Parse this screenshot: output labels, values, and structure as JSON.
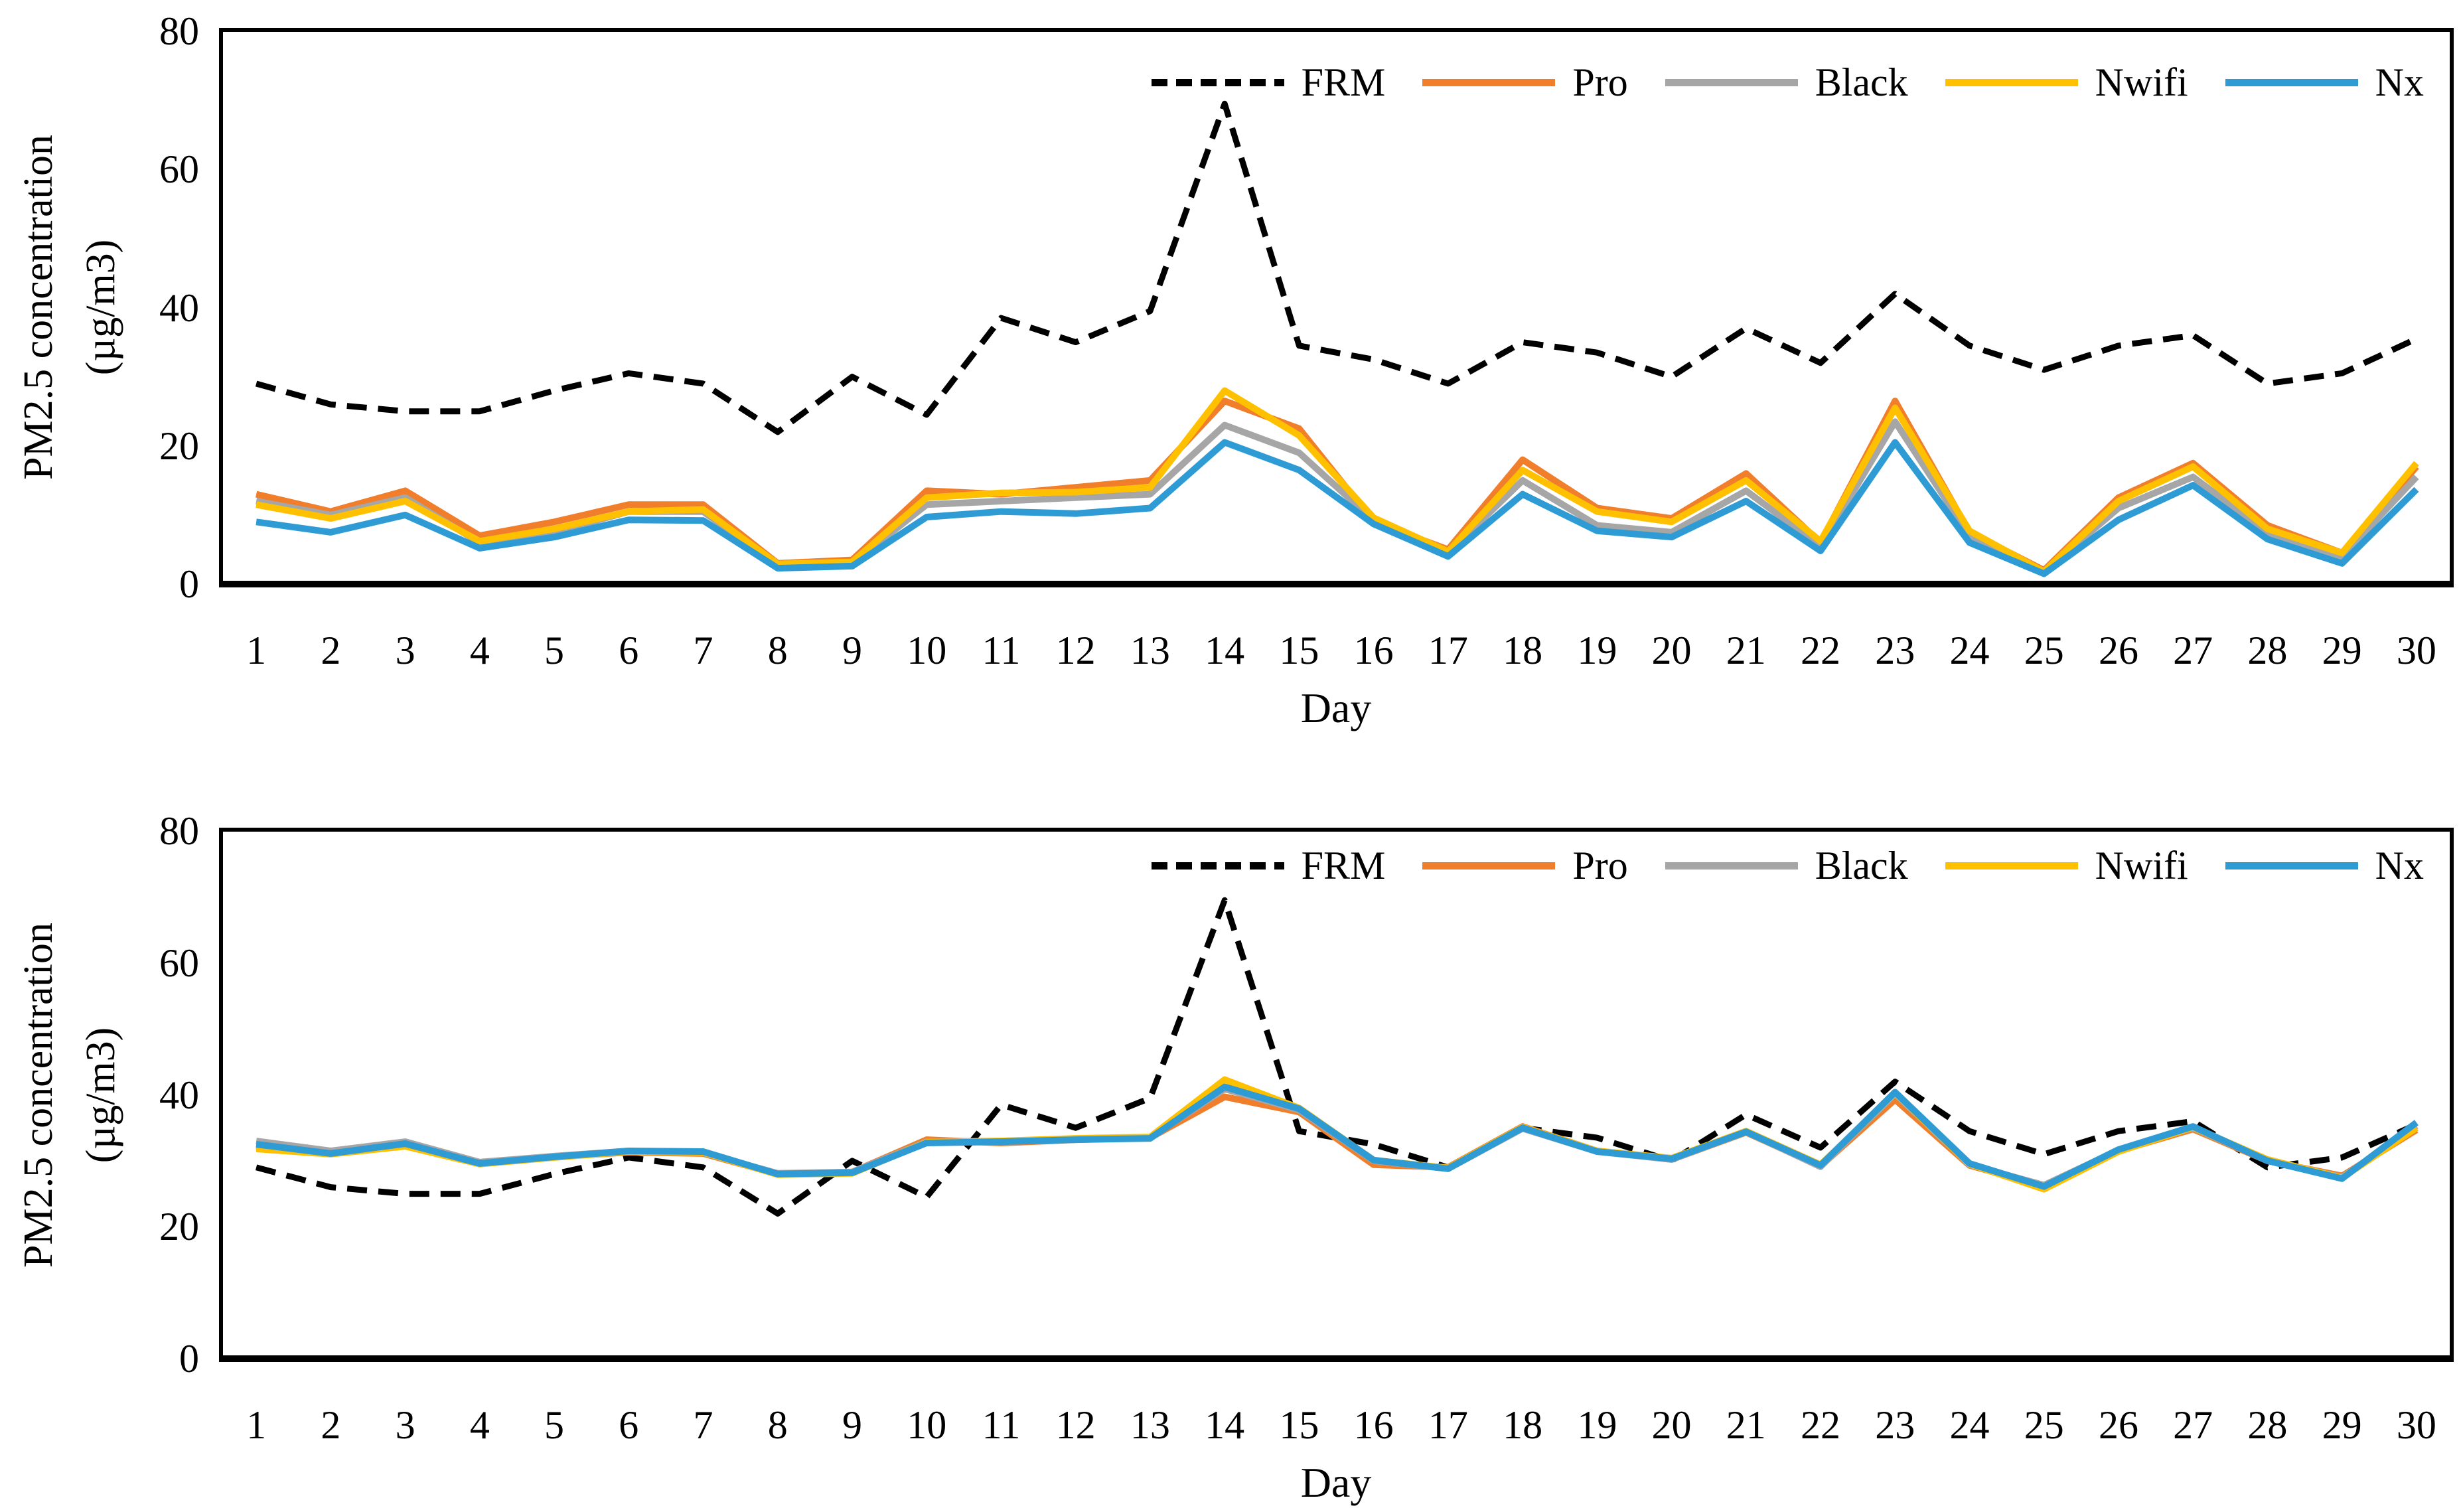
{
  "figure": {
    "background": "#ffffff",
    "panel_count": 2
  },
  "colors": {
    "frm": "#000000",
    "pro": "#F07E2B",
    "black_sensor": "#A6A6A6",
    "nwifi": "#FFC000",
    "nx": "#2E9BD5"
  },
  "chart_data": [
    {
      "type": "line",
      "title": "",
      "xlabel": "Day",
      "ylabel_line1": "PM2.5 concentration",
      "ylabel_line2": "(µg/m3)",
      "ylim": [
        0,
        80
      ],
      "yticks": [
        0,
        20,
        40,
        60,
        80
      ],
      "grid": false,
      "legend_position": "top-right-inside",
      "categories": [
        1,
        2,
        3,
        4,
        5,
        6,
        7,
        8,
        9,
        10,
        11,
        12,
        13,
        14,
        15,
        16,
        17,
        18,
        19,
        20,
        21,
        22,
        23,
        24,
        25,
        26,
        27,
        28,
        29,
        30
      ],
      "series": [
        {
          "name": "FRM",
          "color": "#000000",
          "dashed": true,
          "values": [
            29,
            26,
            25,
            25,
            28,
            30.5,
            29,
            22,
            30,
            24.5,
            38.5,
            35,
            39.5,
            69.5,
            34.5,
            32.5,
            29,
            35,
            33.5,
            30,
            37,
            32,
            42,
            34.5,
            31,
            34.5,
            36,
            29,
            30.5,
            35.5
          ]
        },
        {
          "name": "Pro",
          "color": "#F07E2B",
          "dashed": false,
          "values": [
            13,
            10.5,
            13.5,
            7,
            9,
            11.5,
            11.5,
            3,
            3.5,
            13.5,
            13,
            14,
            15,
            26.5,
            22.5,
            9,
            5,
            18,
            11,
            9.5,
            16,
            6,
            26.5,
            7.5,
            2,
            12.5,
            17.5,
            8.5,
            4.5,
            17
          ]
        },
        {
          "name": "Black",
          "color": "#A6A6A6",
          "dashed": false,
          "values": [
            12,
            10,
            12.5,
            6,
            7.5,
            10.5,
            10.5,
            2.7,
            3,
            11.5,
            12,
            12.5,
            13,
            23,
            19,
            9.2,
            4.5,
            15,
            8.5,
            7.5,
            13.5,
            5.5,
            23.5,
            7,
            1.8,
            11,
            15.5,
            7.5,
            4,
            15.5
          ]
        },
        {
          "name": "Nwifi",
          "color": "#FFC000",
          "dashed": false,
          "values": [
            11.5,
            9.5,
            12,
            6.2,
            8,
            10.5,
            10.8,
            2.9,
            3.2,
            12.5,
            13.2,
            13.3,
            14,
            28,
            21.5,
            9.6,
            4.7,
            16.5,
            10.5,
            9,
            15,
            6.2,
            25.5,
            7.7,
            1.8,
            12,
            17,
            8,
            4.5,
            17.5
          ]
        },
        {
          "name": "Nx",
          "color": "#2E9BD5",
          "dashed": false,
          "values": [
            9,
            7.5,
            10,
            5.2,
            6.8,
            9.3,
            9.2,
            2.3,
            2.6,
            9.7,
            10.5,
            10.2,
            11,
            20.5,
            16.5,
            8.7,
            4,
            13,
            7.7,
            6.8,
            12,
            4.8,
            20.5,
            6,
            1.5,
            9.3,
            14.3,
            6.5,
            3,
            13.7
          ]
        }
      ]
    },
    {
      "type": "line",
      "title": "",
      "xlabel": "Day",
      "ylabel_line1": "PM2.5 concentration",
      "ylabel_line2": "(µg/m3)",
      "ylim": [
        0,
        80
      ],
      "yticks": [
        0,
        20,
        40,
        60,
        80
      ],
      "grid": false,
      "legend_position": "top-right-inside",
      "categories": [
        1,
        2,
        3,
        4,
        5,
        6,
        7,
        8,
        9,
        10,
        11,
        12,
        13,
        14,
        15,
        16,
        17,
        18,
        19,
        20,
        21,
        22,
        23,
        24,
        25,
        26,
        27,
        28,
        29,
        30
      ],
      "series": [
        {
          "name": "FRM",
          "color": "#000000",
          "dashed": true,
          "values": [
            29,
            26,
            25,
            25,
            28,
            30.5,
            29,
            22,
            30,
            24.5,
            38.5,
            35,
            39.5,
            69.5,
            34.5,
            32.5,
            29,
            35,
            33.5,
            30,
            37,
            32,
            42,
            34.5,
            31,
            34.5,
            36,
            29,
            30.5,
            35.5
          ]
        },
        {
          "name": "Pro",
          "color": "#F07E2B",
          "dashed": false,
          "values": [
            32.2,
            31.2,
            32.4,
            29.6,
            30.6,
            31.3,
            31.1,
            28,
            28.3,
            33.2,
            32.7,
            33.2,
            33.5,
            39.7,
            37.4,
            29.4,
            29,
            35.2,
            31.5,
            30.2,
            34.3,
            29.2,
            39.3,
            29.3,
            26.2,
            31.5,
            34.8,
            30,
            27.7,
            34.7
          ]
        },
        {
          "name": "Black",
          "color": "#A6A6A6",
          "dashed": false,
          "values": [
            33,
            31.5,
            32.9,
            29.8,
            30.7,
            31.5,
            31.2,
            28.1,
            28.3,
            32.9,
            33,
            33.3,
            33.5,
            40.9,
            37.7,
            30,
            28.8,
            34.9,
            31.4,
            30.2,
            34.4,
            29.1,
            40.2,
            29.4,
            26.3,
            31.6,
            35,
            30.1,
            27.5,
            35.3
          ]
        },
        {
          "name": "Nwifi",
          "color": "#FFC000",
          "dashed": false,
          "values": [
            31.8,
            31,
            32.2,
            29.5,
            30.5,
            31.4,
            31.3,
            27.9,
            28.1,
            32.8,
            33,
            33.4,
            33.6,
            42.3,
            38,
            30.1,
            28.9,
            35.1,
            31.5,
            30.4,
            34.5,
            29.4,
            40.3,
            29.5,
            25.7,
            31.4,
            35.1,
            30.2,
            27.4,
            35
          ]
        },
        {
          "name": "Nx",
          "color": "#2E9BD5",
          "dashed": false,
          "values": [
            32.5,
            31.1,
            32.6,
            29.6,
            30.6,
            31.5,
            31.4,
            28,
            28.2,
            32.7,
            32.9,
            33.2,
            33.4,
            41.2,
            37.9,
            30.1,
            28.8,
            35,
            31.4,
            30.3,
            34.4,
            29.3,
            40.4,
            29.6,
            26.1,
            31.7,
            35.2,
            30,
            27.3,
            35.8
          ]
        }
      ]
    }
  ]
}
